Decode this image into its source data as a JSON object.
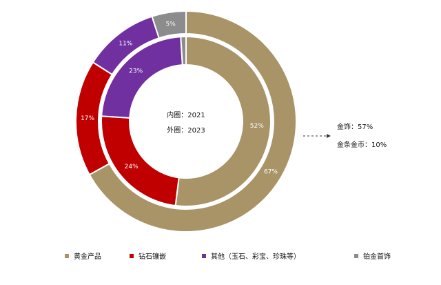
{
  "chart_data": {
    "type": "pie",
    "variant": "nested-donut",
    "categories": [
      "黄金产品",
      "钻石镶嵌",
      "其他（玉石、彩宝、珍珠等）",
      "铂金首饰"
    ],
    "colors": [
      "#a89467",
      "#c00000",
      "#7030a0",
      "#8c8c8c"
    ],
    "series": [
      {
        "ring": "inner",
        "year_label": "内圈：2021",
        "values": [
          52,
          24,
          23,
          1
        ],
        "labels": [
          "52%",
          "24%",
          "23%",
          ""
        ]
      },
      {
        "ring": "outer",
        "year_label": "外圈：2023",
        "values": [
          67,
          17,
          11,
          5
        ],
        "labels": [
          "67%",
          "17%",
          "11%",
          "5%"
        ]
      }
    ],
    "annotation": {
      "lines": [
        "金饰：57%",
        "金条金币：10%"
      ]
    },
    "legend": {
      "placement": "bottom",
      "items": [
        "黄金产品",
        "钻石镶嵌",
        "其他（玉石、彩宝、珍珠等）",
        "铂金首饰"
      ]
    }
  }
}
